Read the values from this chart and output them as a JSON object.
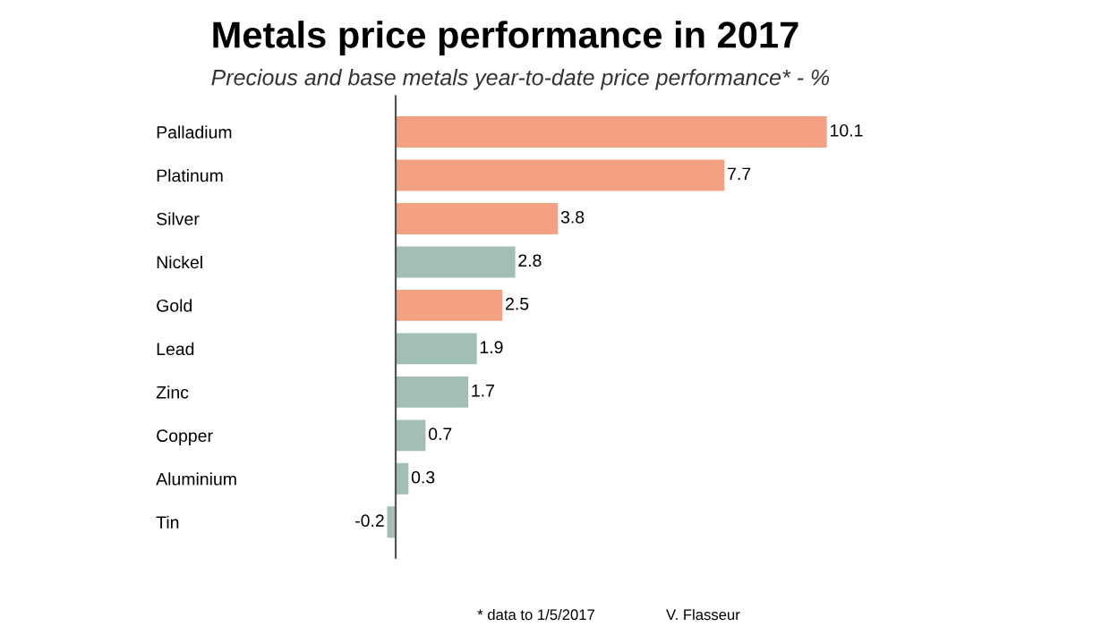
{
  "chart_data": {
    "type": "bar",
    "orientation": "horizontal",
    "title": "Metals price performance in 2017",
    "subtitle": "Precious and base metals year-to-date price performance* - %",
    "categories": [
      "Palladium",
      "Platinum",
      "Silver",
      "Nickel",
      "Gold",
      "Lead",
      "Zinc",
      "Copper",
      "Aluminium",
      "Tin"
    ],
    "values": [
      10.1,
      7.7,
      3.8,
      2.8,
      2.5,
      1.9,
      1.7,
      0.7,
      0.3,
      -0.2
    ],
    "colors": [
      "#f4a083",
      "#f4a083",
      "#f4a083",
      "#a3bfb3",
      "#f4a083",
      "#a3bfb3",
      "#a3bfb3",
      "#a3bfb3",
      "#a3bfb3",
      "#a3bfb3"
    ],
    "data_labels": true,
    "grid": false,
    "legend": false,
    "annotations": [
      "* data to 1/5/2017",
      "V. Flasseur"
    ]
  }
}
